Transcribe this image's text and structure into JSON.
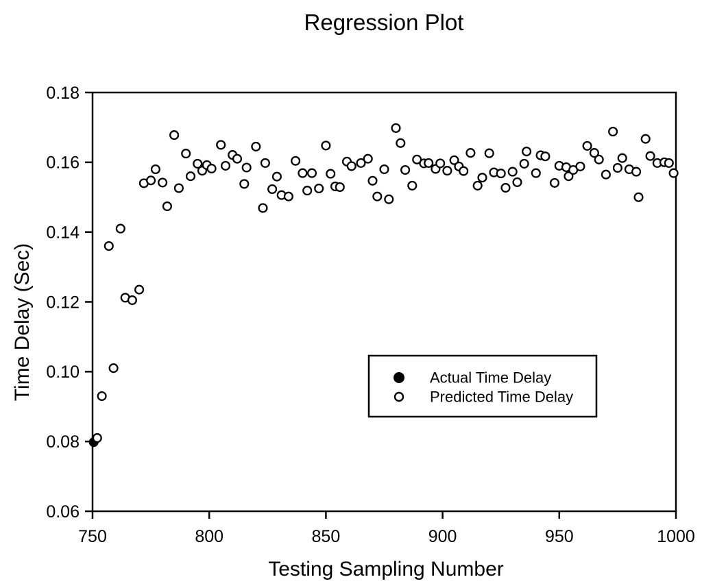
{
  "chart_data": {
    "type": "scatter",
    "title": "Regression Plot",
    "xlabel": "Testing Sampling Number",
    "ylabel": "Time Delay (Sec)",
    "xlim": [
      750,
      1000
    ],
    "ylim": [
      0.06,
      0.18
    ],
    "xticks": [
      750,
      800,
      850,
      900,
      950,
      1000
    ],
    "yticks": [
      0.06,
      0.08,
      0.1,
      0.12,
      0.14,
      0.16,
      0.18
    ],
    "grid": false,
    "colors": {
      "marker_stroke": "#000000",
      "open_marker_fill": "#ffffff",
      "filled_marker_fill": "#000000",
      "background": "#ffffff",
      "axis": "#000000"
    },
    "legend": {
      "position": "inside-center-right",
      "entries": [
        {
          "label": "Actual Time Delay",
          "marker": "filled-circle"
        },
        {
          "label": "Predicted Time Delay",
          "marker": "open-circle"
        }
      ]
    },
    "series": [
      {
        "name": "Actual Time Delay",
        "marker": "filled-circle",
        "points": [
          [
            750.5,
            0.0798
          ]
        ]
      },
      {
        "name": "Predicted Time Delay",
        "marker": "open-circle",
        "points": [
          [
            752,
            0.081
          ],
          [
            754,
            0.093
          ],
          [
            757,
            0.136
          ],
          [
            759,
            0.101
          ],
          [
            762,
            0.141
          ],
          [
            764,
            0.1212
          ],
          [
            767,
            0.1205
          ],
          [
            770,
            0.1235
          ],
          [
            772,
            0.154
          ],
          [
            775,
            0.1548
          ],
          [
            777,
            0.158
          ],
          [
            780,
            0.1542
          ],
          [
            782,
            0.1474
          ],
          [
            785,
            0.1678
          ],
          [
            787,
            0.1526
          ],
          [
            790,
            0.1625
          ],
          [
            792,
            0.156
          ],
          [
            795,
            0.1596
          ],
          [
            797,
            0.1576
          ],
          [
            799,
            0.1592
          ],
          [
            801,
            0.1582
          ],
          [
            805,
            0.165
          ],
          [
            807,
            0.159
          ],
          [
            810,
            0.1621
          ],
          [
            812,
            0.161
          ],
          [
            815,
            0.1538
          ],
          [
            816,
            0.1585
          ],
          [
            820,
            0.1645
          ],
          [
            823,
            0.1469
          ],
          [
            824,
            0.1598
          ],
          [
            827,
            0.1523
          ],
          [
            829,
            0.1559
          ],
          [
            831,
            0.1506
          ],
          [
            834,
            0.1502
          ],
          [
            837,
            0.1604
          ],
          [
            840,
            0.1569
          ],
          [
            842,
            0.1519
          ],
          [
            844,
            0.1569
          ],
          [
            847,
            0.1525
          ],
          [
            850,
            0.1648
          ],
          [
            852,
            0.1567
          ],
          [
            854,
            0.1531
          ],
          [
            856,
            0.1529
          ],
          [
            859,
            0.1602
          ],
          [
            861,
            0.1589
          ],
          [
            865,
            0.1598
          ],
          [
            868,
            0.161
          ],
          [
            870,
            0.1547
          ],
          [
            872,
            0.1502
          ],
          [
            875,
            0.158
          ],
          [
            877,
            0.1494
          ],
          [
            880,
            0.1698
          ],
          [
            882,
            0.1655
          ],
          [
            884,
            0.1578
          ],
          [
            887,
            0.1533
          ],
          [
            889,
            0.1608
          ],
          [
            892,
            0.1597
          ],
          [
            894,
            0.1598
          ],
          [
            897,
            0.1581
          ],
          [
            899,
            0.1597
          ],
          [
            902,
            0.1576
          ],
          [
            905,
            0.1606
          ],
          [
            907,
            0.1588
          ],
          [
            909,
            0.1575
          ],
          [
            912,
            0.1627
          ],
          [
            915,
            0.1533
          ],
          [
            917,
            0.1556
          ],
          [
            920,
            0.1626
          ],
          [
            922,
            0.1571
          ],
          [
            925,
            0.1568
          ],
          [
            927,
            0.1527
          ],
          [
            930,
            0.1573
          ],
          [
            932,
            0.1543
          ],
          [
            935,
            0.1596
          ],
          [
            936,
            0.1631
          ],
          [
            940,
            0.1569
          ],
          [
            942,
            0.162
          ],
          [
            944,
            0.1617
          ],
          [
            948,
            0.1541
          ],
          [
            950,
            0.159
          ],
          [
            953,
            0.1586
          ],
          [
            954,
            0.156
          ],
          [
            956,
            0.1578
          ],
          [
            959,
            0.1588
          ],
          [
            962,
            0.1647
          ],
          [
            965,
            0.1627
          ],
          [
            967,
            0.1608
          ],
          [
            970,
            0.1565
          ],
          [
            973,
            0.1688
          ],
          [
            975,
            0.1584
          ],
          [
            977,
            0.1612
          ],
          [
            980,
            0.158
          ],
          [
            983,
            0.1573
          ],
          [
            984,
            0.15
          ],
          [
            987,
            0.1667
          ],
          [
            989,
            0.1618
          ],
          [
            992,
            0.1598
          ],
          [
            995,
            0.16
          ],
          [
            997,
            0.1598
          ],
          [
            999,
            0.1569
          ]
        ]
      }
    ]
  }
}
